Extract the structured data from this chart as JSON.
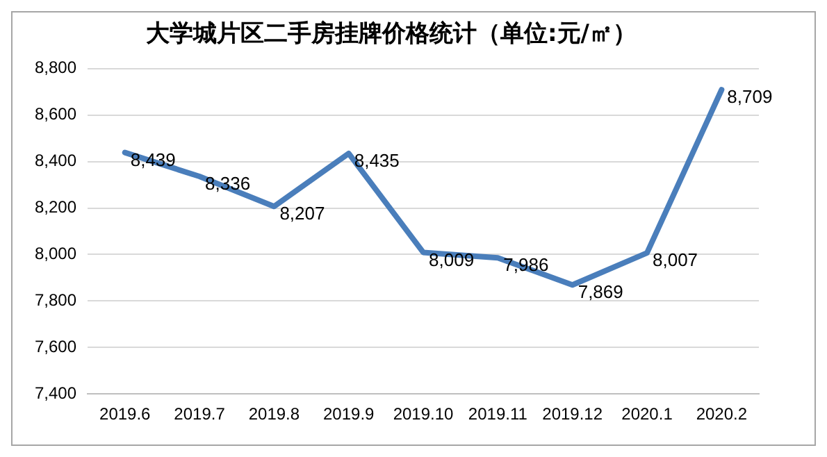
{
  "chart_data": {
    "type": "line",
    "title": "大学城片区二手房挂牌价格统计（单位:元/㎡）",
    "categories": [
      "2019.6",
      "2019.7",
      "2019.8",
      "2019.9",
      "2019.10",
      "2019.11",
      "2019.12",
      "2020.1",
      "2020.2"
    ],
    "series": [
      {
        "color": "#4a7ebb",
        "values": [
          8439,
          8336,
          8207,
          8435,
          8009,
          7986,
          7869,
          8007,
          8709
        ],
        "value_labels": [
          "8,439",
          "8,336",
          "8,207",
          "8,435",
          "8,009",
          "7,986",
          "7,869",
          "8,007",
          "8,709"
        ]
      }
    ],
    "ylim": [
      7400,
      8800
    ],
    "yticks": [
      {
        "value": 7400,
        "label": "7,400"
      },
      {
        "value": 7600,
        "label": "7,600"
      },
      {
        "value": 7800,
        "label": "7,800"
      },
      {
        "value": 8000,
        "label": "8,000"
      },
      {
        "value": 8200,
        "label": "8,200"
      },
      {
        "value": 8400,
        "label": "8,400"
      },
      {
        "value": 8600,
        "label": "8,600"
      },
      {
        "value": 8800,
        "label": "8,800"
      }
    ],
    "grid": "y",
    "legend": false,
    "marker": "none",
    "line_style": "solid"
  }
}
